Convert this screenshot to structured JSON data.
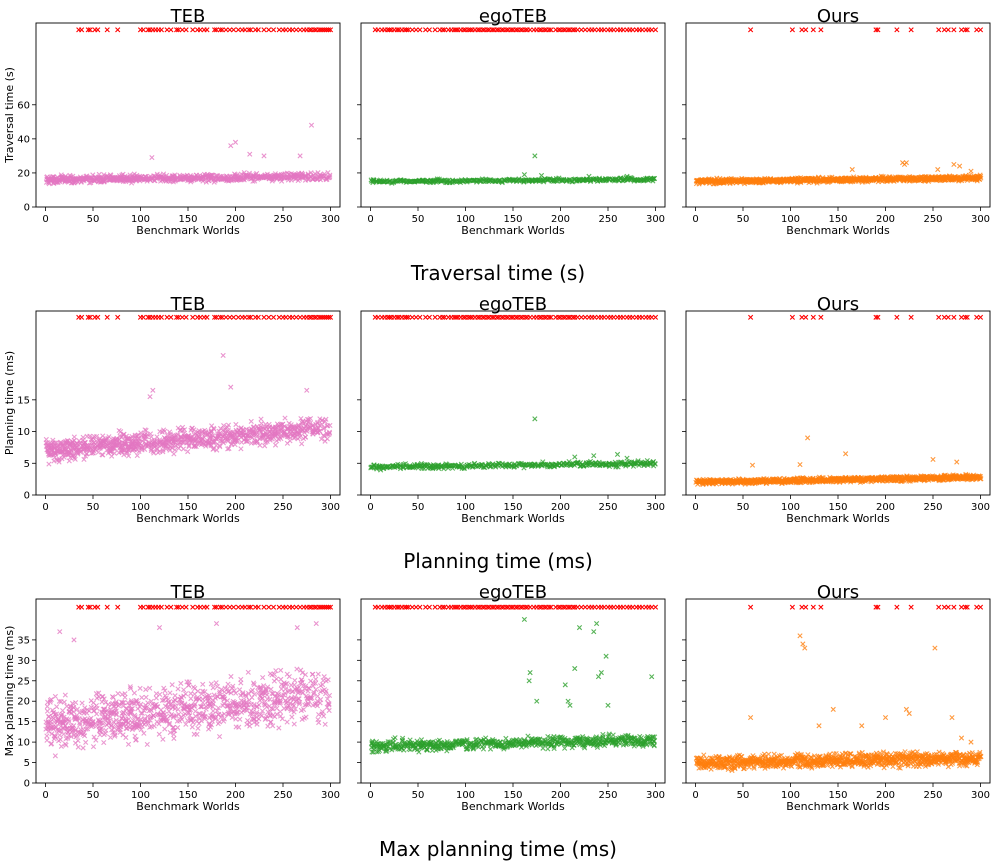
{
  "figure": {
    "rows": [
      {
        "caption": "Traversal time (s)"
      },
      {
        "caption": "Planning time (ms)"
      },
      {
        "caption": "Max planning time (ms)"
      }
    ]
  },
  "chart_data": [
    {
      "type": "scatter",
      "metric": "traversal",
      "title": "TEB",
      "xlabel": "Benchmark Worlds",
      "ylabel": "Traversal time (s)",
      "xlim": [
        -10,
        310
      ],
      "ylim": [
        0,
        108
      ],
      "xticks": [
        0,
        50,
        100,
        150,
        200,
        250,
        300
      ],
      "yticks": [
        0,
        20,
        40,
        60
      ],
      "color": "#e377c2",
      "failure_color": "#ff0000",
      "failure_marker_y": 104,
      "failure_worlds": [
        35,
        38,
        45,
        47,
        52,
        55,
        65,
        76,
        100,
        103,
        108,
        110,
        113,
        116,
        119,
        122,
        128,
        132,
        138,
        140,
        144,
        148,
        155,
        160,
        163,
        167,
        170,
        178,
        180,
        184,
        186,
        190,
        194,
        198,
        203,
        207,
        210,
        214,
        216,
        221,
        224,
        230,
        235,
        240,
        246,
        250,
        253,
        257,
        260,
        264,
        268,
        272,
        275,
        278,
        280,
        283,
        285,
        288,
        290,
        292,
        294,
        296,
        298,
        300
      ],
      "base": 16,
      "spread": 2.0,
      "trend": 2.0,
      "density": 3,
      "omit_failures": true,
      "outliers": [
        [
          112,
          29
        ],
        [
          195,
          36
        ],
        [
          200,
          38
        ],
        [
          215,
          31
        ],
        [
          230,
          30
        ],
        [
          268,
          30
        ],
        [
          280,
          48
        ]
      ]
    },
    {
      "type": "scatter",
      "metric": "traversal",
      "title": "egoTEB",
      "xlabel": "Benchmark Worlds",
      "ylabel": "Traversal time (s)",
      "xlim": [
        -10,
        310
      ],
      "ylim": [
        0,
        108
      ],
      "xticks": [
        0,
        50,
        100,
        150,
        200,
        250,
        300
      ],
      "yticks": [
        0,
        20,
        40,
        60
      ],
      "color": "#2ca02c",
      "failure_color": "#ff0000",
      "failure_marker_y": 104,
      "failure_worlds": [
        5,
        8,
        12,
        15,
        18,
        20,
        22,
        25,
        28,
        30,
        33,
        36,
        38,
        40,
        44,
        48,
        52,
        58,
        62,
        68,
        73,
        76,
        78,
        82,
        85,
        88,
        90,
        92,
        95,
        98,
        100,
        103,
        105,
        107,
        110,
        113,
        115,
        118,
        120,
        123,
        125,
        128,
        130,
        133,
        135,
        138,
        140,
        143,
        145,
        148,
        150,
        153,
        155,
        158,
        160,
        163,
        165,
        168,
        172,
        175,
        178,
        180,
        183,
        185,
        188,
        190,
        195,
        198,
        200,
        203,
        205,
        208,
        210,
        213,
        215,
        218,
        222,
        226,
        230,
        233,
        236,
        240,
        243,
        246,
        250,
        253,
        256,
        260,
        263,
        266,
        270,
        273,
        276,
        280,
        283,
        286,
        290,
        293,
        296,
        300
      ],
      "base": 15,
      "spread": 0.9,
      "trend": 1.2,
      "density": 2,
      "omit_failures": true,
      "outliers": [
        [
          173,
          30
        ],
        [
          162,
          19
        ],
        [
          180,
          18.5
        ],
        [
          230,
          18
        ],
        [
          270,
          18
        ]
      ]
    },
    {
      "type": "scatter",
      "metric": "traversal",
      "title": "Ours",
      "xlabel": "Benchmark Worlds",
      "ylabel": "Traversal time (s)",
      "xlim": [
        -10,
        310
      ],
      "ylim": [
        0,
        108
      ],
      "xticks": [
        0,
        50,
        100,
        150,
        200,
        250,
        300
      ],
      "yticks": [
        0,
        20,
        40,
        60
      ],
      "color": "#ff7f0e",
      "failure_color": "#ff0000",
      "failure_marker_y": 104,
      "failure_worlds": [
        58,
        102,
        112,
        116,
        124,
        132,
        190,
        192,
        212,
        227,
        256,
        262,
        266,
        272,
        280,
        284,
        286,
        296,
        300
      ],
      "base": 15,
      "spread": 1.3,
      "trend": 2.0,
      "density": 3,
      "omit_failures": false,
      "outliers": [
        [
          165,
          22
        ],
        [
          218,
          26
        ],
        [
          220,
          25
        ],
        [
          222,
          26
        ],
        [
          255,
          22
        ],
        [
          272,
          25
        ],
        [
          278,
          24
        ],
        [
          290,
          21
        ]
      ]
    },
    {
      "type": "scatter",
      "metric": "planning",
      "title": "TEB",
      "xlabel": "Benchmark Worlds",
      "ylabel": "Planning time (ms)",
      "xlim": [
        -10,
        310
      ],
      "ylim": [
        0,
        29
      ],
      "xticks": [
        0,
        50,
        100,
        150,
        200,
        250,
        300
      ],
      "yticks": [
        0,
        5,
        10,
        15
      ],
      "color": "#e377c2",
      "failure_color": "#ff0000",
      "failure_marker_y": 28,
      "failure_worlds": [
        35,
        38,
        45,
        47,
        52,
        55,
        65,
        76,
        100,
        103,
        108,
        110,
        113,
        116,
        119,
        122,
        128,
        132,
        138,
        140,
        144,
        148,
        155,
        160,
        163,
        167,
        170,
        178,
        180,
        184,
        186,
        190,
        194,
        198,
        203,
        207,
        210,
        214,
        216,
        221,
        224,
        230,
        235,
        240,
        246,
        250,
        253,
        257,
        260,
        264,
        268,
        272,
        275,
        278,
        280,
        283,
        285,
        288,
        290,
        292,
        294,
        296,
        298,
        300
      ],
      "base": 7,
      "spread": 1.6,
      "trend": 3.5,
      "density": 4,
      "omit_failures": true,
      "outliers": [
        [
          113,
          16.5
        ],
        [
          187,
          22
        ],
        [
          195,
          17
        ],
        [
          275,
          16.5
        ],
        [
          110,
          15.5
        ]
      ]
    },
    {
      "type": "scatter",
      "metric": "planning",
      "title": "egoTEB",
      "xlabel": "Benchmark Worlds",
      "ylabel": "Planning time (ms)",
      "xlim": [
        -10,
        310
      ],
      "ylim": [
        0,
        29
      ],
      "xticks": [
        0,
        50,
        100,
        150,
        200,
        250,
        300
      ],
      "yticks": [
        0,
        5,
        10,
        15
      ],
      "color": "#2ca02c",
      "failure_color": "#ff0000",
      "failure_marker_y": 28,
      "failure_worlds": [
        5,
        8,
        12,
        15,
        18,
        20,
        22,
        25,
        28,
        30,
        33,
        36,
        38,
        40,
        44,
        48,
        52,
        58,
        62,
        68,
        73,
        76,
        78,
        82,
        85,
        88,
        90,
        92,
        95,
        98,
        100,
        103,
        105,
        107,
        110,
        113,
        115,
        118,
        120,
        123,
        125,
        128,
        130,
        133,
        135,
        138,
        140,
        143,
        145,
        148,
        150,
        153,
        155,
        158,
        160,
        163,
        165,
        168,
        172,
        175,
        178,
        180,
        183,
        185,
        188,
        190,
        195,
        198,
        200,
        203,
        205,
        208,
        210,
        213,
        215,
        218,
        222,
        226,
        230,
        233,
        236,
        240,
        243,
        246,
        250,
        253,
        256,
        260,
        263,
        266,
        270,
        273,
        276,
        280,
        283,
        286,
        290,
        293,
        296,
        300
      ],
      "base": 4.4,
      "spread": 0.35,
      "trend": 0.6,
      "density": 2,
      "omit_failures": true,
      "outliers": [
        [
          173,
          12
        ],
        [
          215,
          6
        ],
        [
          235,
          6.2
        ],
        [
          260,
          6.4
        ],
        [
          270,
          5.8
        ]
      ]
    },
    {
      "type": "scatter",
      "metric": "planning",
      "title": "Ours",
      "xlabel": "Benchmark Worlds",
      "ylabel": "Planning time (ms)",
      "xlim": [
        -10,
        310
      ],
      "ylim": [
        0,
        29
      ],
      "xticks": [
        0,
        50,
        100,
        150,
        200,
        250,
        300
      ],
      "yticks": [
        0,
        5,
        10,
        15
      ],
      "color": "#ff7f0e",
      "failure_color": "#ff0000",
      "failure_marker_y": 28,
      "failure_worlds": [
        58,
        102,
        112,
        116,
        124,
        132,
        190,
        192,
        212,
        227,
        256,
        262,
        266,
        272,
        280,
        284,
        286,
        296,
        300
      ],
      "base": 2.0,
      "spread": 0.35,
      "trend": 0.8,
      "density": 3,
      "omit_failures": false,
      "outliers": [
        [
          118,
          9
        ],
        [
          158,
          6.5
        ],
        [
          110,
          4.8
        ],
        [
          250,
          5.6
        ],
        [
          275,
          5.2
        ],
        [
          60,
          4.7
        ]
      ]
    },
    {
      "type": "scatter",
      "metric": "max_planning",
      "title": "TEB",
      "xlabel": "Benchmark Worlds",
      "ylabel": "Max planning time (ms)",
      "xlim": [
        -10,
        310
      ],
      "ylim": [
        0,
        45
      ],
      "xticks": [
        0,
        50,
        100,
        150,
        200,
        250,
        300
      ],
      "yticks": [
        0,
        5,
        10,
        15,
        20,
        25,
        30,
        35
      ],
      "color": "#e377c2",
      "failure_color": "#ff0000",
      "failure_marker_y": 43,
      "failure_worlds": [
        35,
        38,
        45,
        47,
        52,
        55,
        65,
        76,
        100,
        103,
        108,
        110,
        113,
        116,
        119,
        122,
        128,
        132,
        138,
        140,
        144,
        148,
        155,
        160,
        163,
        167,
        170,
        178,
        180,
        184,
        186,
        190,
        194,
        198,
        203,
        207,
        210,
        214,
        216,
        221,
        224,
        230,
        235,
        240,
        246,
        250,
        253,
        257,
        260,
        264,
        268,
        272,
        275,
        278,
        280,
        283,
        285,
        288,
        290,
        292,
        294,
        296,
        298,
        300
      ],
      "base": 14,
      "spread": 5.5,
      "trend": 8,
      "density": 4,
      "omit_failures": true,
      "outliers": [
        [
          15,
          37
        ],
        [
          30,
          35
        ],
        [
          120,
          38
        ],
        [
          180,
          39
        ],
        [
          265,
          38
        ],
        [
          285,
          39
        ]
      ]
    },
    {
      "type": "scatter",
      "metric": "max_planning",
      "title": "egoTEB",
      "xlabel": "Benchmark Worlds",
      "ylabel": "Max planning time (ms)",
      "xlim": [
        -10,
        310
      ],
      "ylim": [
        0,
        45
      ],
      "xticks": [
        0,
        50,
        100,
        150,
        200,
        250,
        300
      ],
      "yticks": [
        0,
        5,
        10,
        15,
        20,
        25,
        30,
        35
      ],
      "color": "#2ca02c",
      "failure_color": "#ff0000",
      "failure_marker_y": 43,
      "failure_worlds": [
        5,
        8,
        12,
        15,
        18,
        20,
        22,
        25,
        28,
        30,
        33,
        36,
        38,
        40,
        44,
        48,
        52,
        58,
        62,
        68,
        73,
        76,
        78,
        82,
        85,
        88,
        90,
        92,
        95,
        98,
        100,
        103,
        105,
        107,
        110,
        113,
        115,
        118,
        120,
        123,
        125,
        128,
        130,
        133,
        135,
        138,
        140,
        143,
        145,
        148,
        150,
        153,
        155,
        158,
        160,
        163,
        165,
        168,
        172,
        175,
        178,
        180,
        183,
        185,
        188,
        190,
        195,
        198,
        200,
        203,
        205,
        208,
        210,
        213,
        215,
        218,
        222,
        226,
        230,
        233,
        236,
        240,
        243,
        246,
        250,
        253,
        256,
        260,
        263,
        266,
        270,
        273,
        276,
        280,
        283,
        286,
        290,
        293,
        296,
        300
      ],
      "base": 9,
      "spread": 1.3,
      "trend": 1.5,
      "density": 3,
      "omit_failures": true,
      "outliers": [
        [
          162,
          40
        ],
        [
          167,
          25
        ],
        [
          168,
          27
        ],
        [
          175,
          20
        ],
        [
          205,
          24
        ],
        [
          208,
          20
        ],
        [
          210,
          19
        ],
        [
          215,
          28
        ],
        [
          220,
          38
        ],
        [
          235,
          37
        ],
        [
          238,
          39
        ],
        [
          240,
          26
        ],
        [
          243,
          27
        ],
        [
          248,
          31
        ],
        [
          250,
          19
        ],
        [
          296,
          26
        ]
      ]
    },
    {
      "type": "scatter",
      "metric": "max_planning",
      "title": "Ours",
      "xlabel": "Benchmark Worlds",
      "ylabel": "Max planning time (ms)",
      "xlim": [
        -10,
        310
      ],
      "ylim": [
        0,
        45
      ],
      "xticks": [
        0,
        50,
        100,
        150,
        200,
        250,
        300
      ],
      "yticks": [
        0,
        5,
        10,
        15,
        20,
        25,
        30,
        35
      ],
      "color": "#ff7f0e",
      "failure_color": "#ff0000",
      "failure_marker_y": 43,
      "failure_worlds": [
        58,
        102,
        112,
        116,
        124,
        132,
        190,
        192,
        212,
        227,
        256,
        262,
        266,
        272,
        280,
        284,
        286,
        296,
        300
      ],
      "base": 5,
      "spread": 1.5,
      "trend": 1.0,
      "density": 3,
      "omit_failures": false,
      "outliers": [
        [
          58,
          16
        ],
        [
          110,
          36
        ],
        [
          113,
          34
        ],
        [
          115,
          33
        ],
        [
          130,
          14
        ],
        [
          145,
          18
        ],
        [
          175,
          14
        ],
        [
          200,
          16
        ],
        [
          222,
          18
        ],
        [
          225,
          17
        ],
        [
          252,
          33
        ],
        [
          270,
          16
        ],
        [
          280,
          11
        ],
        [
          290,
          10
        ]
      ]
    }
  ]
}
